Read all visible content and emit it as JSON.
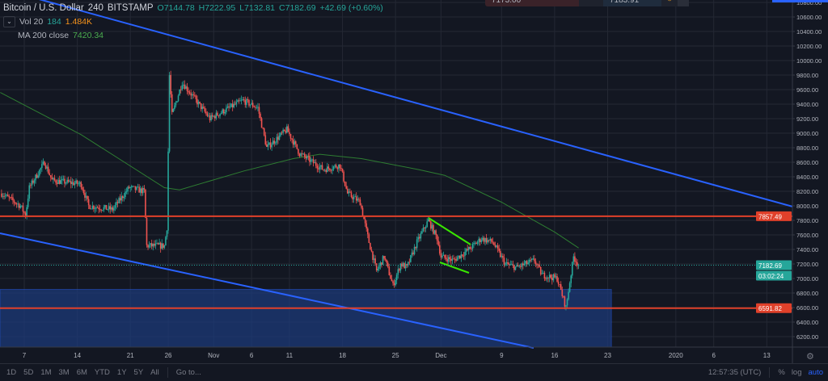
{
  "header": {
    "symbol": "Bitcoin / U.S. Dollar",
    "interval": "240",
    "exchange": "BITSTAMP",
    "open": "O7144.78",
    "high": "H7222.95",
    "low": "L7132.81",
    "close": "C7182.69",
    "change": "+42.69 (+0.60%)",
    "vol_label": "Vol 20",
    "vol_ma": "184",
    "vol_value": "1.484K",
    "ma_label": "MA 200 close",
    "ma_value": "7420.34",
    "collapse_icon": "chevron-down-icon"
  },
  "order_widget": {
    "sell": "7173.00",
    "buy": "7183.91"
  },
  "bottom_bar": {
    "ranges": [
      "1D",
      "5D",
      "1M",
      "3M",
      "6M",
      "YTD",
      "1Y",
      "5Y",
      "All"
    ],
    "goto": "Go to...",
    "clock": "12:57:35 (UTC)",
    "percent": "%",
    "log": "log",
    "auto": "auto"
  },
  "colors": {
    "up": "#26a69a",
    "down": "#ef5350",
    "ma": "#2e7d32",
    "channel": "#2962ff",
    "level": "#e0402a",
    "flag": "#39e600",
    "zone": "#1c3a78",
    "background": "#131722"
  },
  "chart_data": {
    "type": "candlestick",
    "interval": "4h",
    "ylim": [
      6000,
      10900
    ],
    "grid": true,
    "y_ticks": [
      "10800.00",
      "10600.00",
      "10400.00",
      "10200.00",
      "10000.00",
      "9800.00",
      "9600.00",
      "9400.00",
      "9200.00",
      "9000.00",
      "8800.00",
      "8600.00",
      "8400.00",
      "8200.00",
      "8000.00",
      "7800.00",
      "7600.00",
      "7400.00",
      "7200.00",
      "7000.00",
      "6800.00",
      "6600.00",
      "6400.00",
      "6200.00"
    ],
    "x_ticks": [
      {
        "label": "7",
        "date": "2019-10-07"
      },
      {
        "label": "14",
        "date": "2019-10-14"
      },
      {
        "label": "21",
        "date": "2019-10-21"
      },
      {
        "label": "26",
        "date": "2019-10-26"
      },
      {
        "label": "Nov",
        "date": "2019-11-01"
      },
      {
        "label": "6",
        "date": "2019-11-06"
      },
      {
        "label": "11",
        "date": "2019-11-11"
      },
      {
        "label": "18",
        "date": "2019-11-18"
      },
      {
        "label": "25",
        "date": "2019-11-25"
      },
      {
        "label": "Dec",
        "date": "2019-12-01"
      },
      {
        "label": "9",
        "date": "2019-12-09"
      },
      {
        "label": "16",
        "date": "2019-12-16"
      },
      {
        "label": "23",
        "date": "2019-12-23"
      },
      {
        "label": "2020",
        "date": "2020-01-01"
      },
      {
        "label": "6",
        "date": "2020-01-06"
      },
      {
        "label": "13",
        "date": "2020-01-13"
      }
    ],
    "approx_close_path": [
      [
        "2019-10-04T00:00",
        8170
      ],
      [
        "2019-10-06T12:00",
        8000
      ],
      [
        "2019-10-07T04:00",
        7870
      ],
      [
        "2019-10-07T16:00",
        8250
      ],
      [
        "2019-10-09T16:00",
        8600
      ],
      [
        "2019-10-10T16:00",
        8350
      ],
      [
        "2019-10-14T12:00",
        8300
      ],
      [
        "2019-10-15T12:00",
        8000
      ],
      [
        "2019-10-18T16:00",
        7950
      ],
      [
        "2019-10-20T20:00",
        8250
      ],
      [
        "2019-10-22T20:00",
        8200
      ],
      [
        "2019-10-23T04:00",
        7450
      ],
      [
        "2019-10-25T12:00",
        7450
      ],
      [
        "2019-10-25T20:00",
        7700
      ],
      [
        "2019-10-26T04:00",
        9800
      ],
      [
        "2019-10-26T12:00",
        9250
      ],
      [
        "2019-10-27T20:00",
        9700
      ],
      [
        "2019-10-31T12:00",
        9200
      ],
      [
        "2019-11-04T20:00",
        9450
      ],
      [
        "2019-11-06T20:00",
        9350
      ],
      [
        "2019-11-08T00:00",
        8800
      ],
      [
        "2019-11-10T16:00",
        9050
      ],
      [
        "2019-11-12T08:00",
        8720
      ],
      [
        "2019-11-15T12:00",
        8500
      ],
      [
        "2019-11-17T16:00",
        8560
      ],
      [
        "2019-11-18T16:00",
        8170
      ],
      [
        "2019-11-20T08:00",
        8050
      ],
      [
        "2019-11-21T12:00",
        7500
      ],
      [
        "2019-11-22T12:00",
        7100
      ],
      [
        "2019-11-23T12:00",
        7300
      ],
      [
        "2019-11-24T16:00",
        6900
      ],
      [
        "2019-11-25T16:00",
        7200
      ],
      [
        "2019-11-26T12:00",
        7150
      ],
      [
        "2019-11-27T20:00",
        7500
      ],
      [
        "2019-11-29T08:00",
        7800
      ],
      [
        "2019-11-30T12:00",
        7550
      ],
      [
        "2019-12-01T00:00",
        7300
      ],
      [
        "2019-12-02T16:00",
        7250
      ],
      [
        "2019-12-04T16:00",
        7400
      ],
      [
        "2019-12-06T08:00",
        7550
      ],
      [
        "2019-12-07T20:00",
        7500
      ],
      [
        "2019-12-09T12:00",
        7200
      ],
      [
        "2019-12-11T00:00",
        7150
      ],
      [
        "2019-12-13T08:00",
        7250
      ],
      [
        "2019-12-14T08:00",
        7050
      ],
      [
        "2019-12-16T08:00",
        7000
      ],
      [
        "2019-12-17T12:00",
        6600
      ],
      [
        "2019-12-18T12:00",
        7300
      ],
      [
        "2019-12-19T04:00",
        7182.69
      ]
    ],
    "ma200_path": [
      [
        "2019-10-03T20:00",
        9560
      ],
      [
        "2019-10-14T12:00",
        8980
      ],
      [
        "2019-10-25T12:00",
        8250
      ],
      [
        "2019-10-27T12:00",
        8220
      ],
      [
        "2019-11-05T00:00",
        8480
      ],
      [
        "2019-11-11T12:00",
        8650
      ],
      [
        "2019-11-15T00:00",
        8710
      ],
      [
        "2019-11-20T12:00",
        8650
      ],
      [
        "2019-11-28T00:00",
        8500
      ],
      [
        "2019-12-01T12:00",
        8420
      ],
      [
        "2019-12-09T00:00",
        8050
      ],
      [
        "2019-12-16T00:00",
        7640
      ],
      [
        "2019-12-19T04:00",
        7420.34
      ]
    ],
    "last_price": "7182.69",
    "countdown": "03:02:24",
    "levels": [
      {
        "label": "7857.49",
        "price": 7857.49
      },
      {
        "label": "6591.82",
        "price": 6591.82
      }
    ],
    "demand_zone": {
      "from_price": 6000,
      "to_price": 6850,
      "until": "2019-12-23T12:00"
    }
  }
}
